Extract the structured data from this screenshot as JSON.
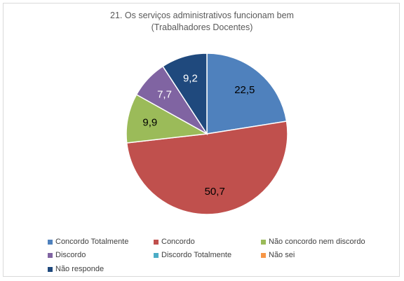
{
  "chart_data": {
    "type": "pie",
    "title": "21. Os serviços administrativos funcionam bem",
    "subtitle": "(Trabalhadores Docentes)",
    "legend_position": "bottom",
    "categories": [
      "Concordo Totalmente",
      "Concordo",
      "Não concordo nem discordo",
      "Discordo",
      "Discordo Totalmente",
      "Não sei",
      "Não responde"
    ],
    "values": [
      22.5,
      50.7,
      9.9,
      7.7,
      0,
      0,
      9.2
    ],
    "labels": [
      "22,5",
      "50,7",
      "9,9",
      "7,7",
      "",
      "",
      "9,2"
    ],
    "colors": [
      "#4f81bd",
      "#c0504d",
      "#9bbb59",
      "#8064a2",
      "#4bacc6",
      "#f79646",
      "#1f497d"
    ],
    "label_colors": [
      "#000000",
      "#000000",
      "#000000",
      "#ffffff",
      "#000000",
      "#000000",
      "#ffffff"
    ]
  }
}
